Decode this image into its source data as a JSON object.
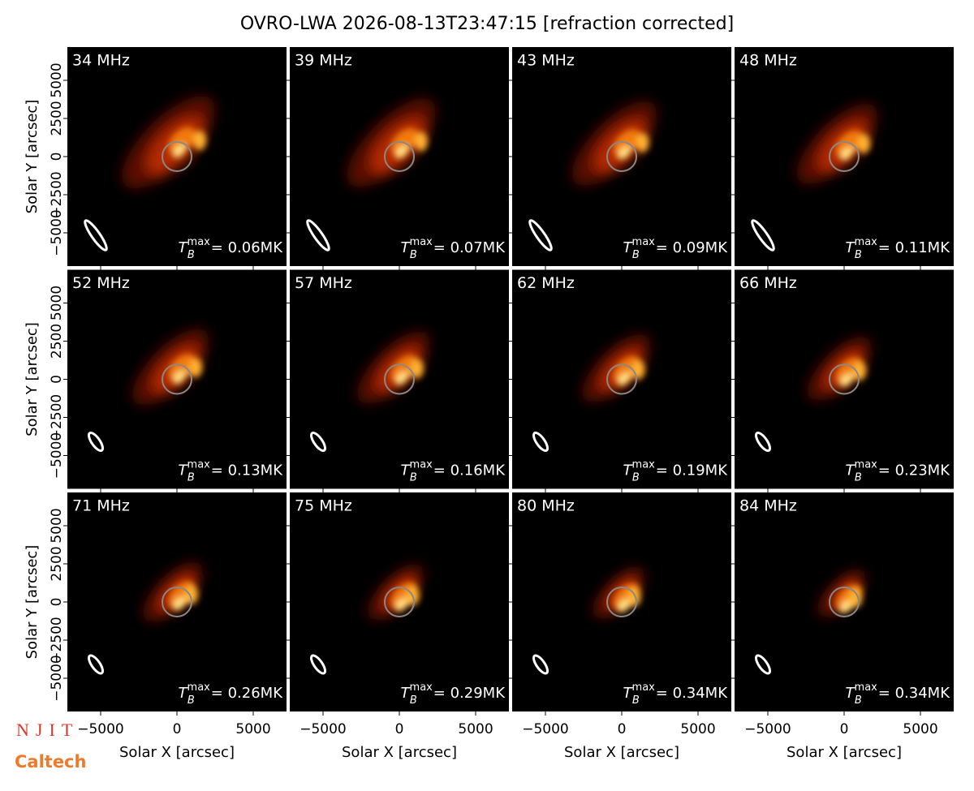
{
  "chart_data": {
    "type": "image-grid",
    "title": "OVRO-LWA 2026-08-13T23:47:15 [refraction corrected]",
    "xlabel": "Solar X [arcsec]",
    "ylabel": "Solar Y [arcsec]",
    "xlim": [
      -7180,
      7180
    ],
    "ylim": [
      -7180,
      7180
    ],
    "xticks": [
      {
        "value": -5000,
        "label": "−5000"
      },
      0,
      5000
    ],
    "yticks": [
      {
        "value": -5000,
        "label": "−5000"
      },
      {
        "value": -2500,
        "label": "−2500"
      },
      0,
      2500,
      5000
    ],
    "tb_symbol": "T",
    "tb_sub": "B",
    "tb_sup": "max",
    "panels": [
      {
        "freq": "34 MHz",
        "tb": "= 0.06MK"
      },
      {
        "freq": "39 MHz",
        "tb": "= 0.07MK"
      },
      {
        "freq": "43 MHz",
        "tb": "= 0.09MK"
      },
      {
        "freq": "48 MHz",
        "tb": "= 0.11MK"
      },
      {
        "freq": "52 MHz",
        "tb": "= 0.13MK"
      },
      {
        "freq": "57 MHz",
        "tb": "= 0.16MK"
      },
      {
        "freq": "62 MHz",
        "tb": "= 0.19MK"
      },
      {
        "freq": "66 MHz",
        "tb": "= 0.23MK"
      },
      {
        "freq": "71 MHz",
        "tb": "= 0.26MK"
      },
      {
        "freq": "75 MHz",
        "tb": "= 0.29MK"
      },
      {
        "freq": "80 MHz",
        "tb": "= 0.34MK"
      },
      {
        "freq": "84 MHz",
        "tb": "= 0.34MK"
      }
    ],
    "logos": [
      "NJIT",
      "Caltech"
    ]
  }
}
